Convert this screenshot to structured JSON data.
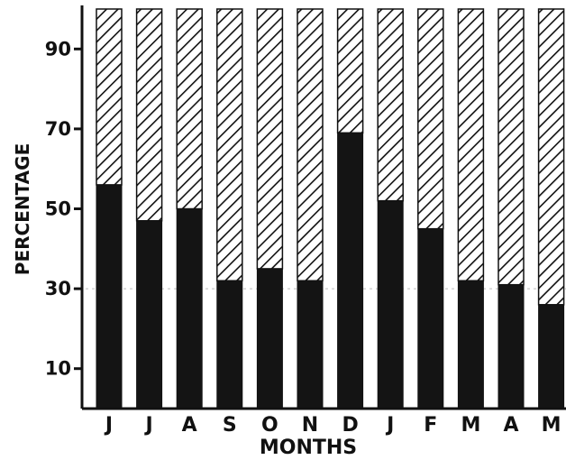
{
  "chart_data": {
    "type": "bar",
    "stacked": true,
    "xlabel": "MONTHS",
    "ylabel": "PERCENTAGE",
    "ylim": [
      0,
      100
    ],
    "yticks": [
      "10",
      "30",
      "50",
      "70",
      "90"
    ],
    "yticks_values": [
      10,
      30,
      50,
      70,
      90
    ],
    "categories": [
      "J",
      "J",
      "A",
      "S",
      "O",
      "N",
      "D",
      "J",
      "F",
      "M",
      "A",
      "M"
    ],
    "series": [
      {
        "values": [
          56,
          47,
          50,
          32,
          35,
          32,
          69,
          52,
          45,
          32,
          31,
          26
        ],
        "fill": "solid-black"
      },
      {
        "values": [
          44,
          53,
          50,
          68,
          65,
          68,
          31,
          48,
          55,
          68,
          69,
          74
        ],
        "fill": "diagonal-hatch"
      }
    ],
    "colors": {
      "solid": "#141414",
      "hatch_line": "#111111",
      "background": "#ffffff"
    }
  }
}
